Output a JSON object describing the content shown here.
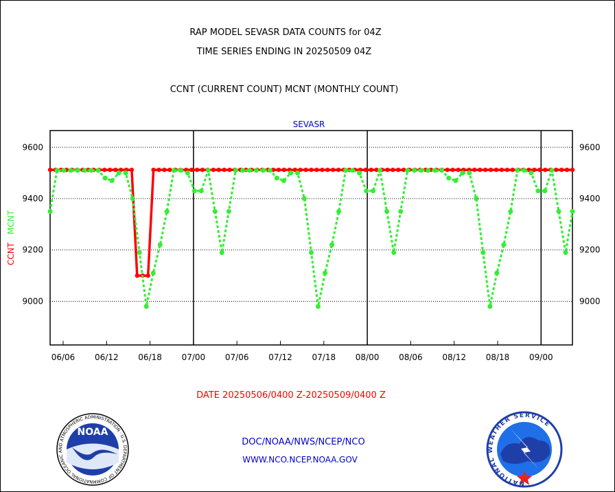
{
  "title_line1": "RAP MODEL SEVASR DATA COUNTS for 04Z",
  "title_line2": "TIME SERIES ENDING IN 20250509 04Z",
  "subtitle": "CCNT (CURRENT COUNT) MCNT (MONTHLY COUNT)",
  "date_range": "DATE 20250506/0400 Z-20250509/0400 Z",
  "footer_line1": "DOC/NOAA/NWS/NCEP/NCO",
  "footer_line2": "WWW.NCO.NCEP.NOAA.GOV",
  "logos": {
    "noaa_text": "NOAA",
    "noaa_ring_text": "NATIONAL OCEANIC AND ATMOSPHERIC ADMINISTRATION · U.S. DEPARTMENT OF COMMERCE ·",
    "nws_ring_text": "NATIONAL WEATHER SERVICE"
  },
  "colors": {
    "ccnt": "#ff0000",
    "mcnt": "#33ee33",
    "plot_title": "#0000cc",
    "date_text": "#ff0000",
    "footer": "#0000cc"
  },
  "chart_data": {
    "type": "line",
    "plot_title": "SEVASR",
    "ylabel_parts": [
      {
        "text": "CCNT",
        "color": "#ff0000"
      },
      {
        "text": "MCNT",
        "color": "#33ee33"
      }
    ],
    "x_tick_labels": [
      "06/06",
      "06/12",
      "06/18",
      "07/00",
      "07/06",
      "07/12",
      "07/18",
      "08/00",
      "08/06",
      "08/12",
      "08/18",
      "09/00"
    ],
    "y_ticks": [
      9000,
      9200,
      9400,
      9600
    ],
    "ylim": [
      8830,
      9665
    ],
    "grid": true,
    "series": [
      {
        "name": "CCNT",
        "color": "#ff0000",
        "values": [
          9512,
          9512,
          9512,
          9512,
          9512,
          9512,
          9512,
          9512,
          9512,
          9512,
          9512,
          9512,
          9512,
          9512,
          9512,
          9512,
          9100,
          9100,
          9100,
          9512,
          9512,
          9512,
          9512,
          9512,
          9512,
          9512,
          9512,
          9512,
          9512,
          9512,
          9512,
          9512,
          9512,
          9512,
          9512,
          9512,
          9512,
          9512,
          9512,
          9512,
          9512,
          9512,
          9512,
          9512,
          9512,
          9512,
          9512,
          9512,
          9512,
          9512,
          9512,
          9512,
          9512,
          9512,
          9512,
          9512,
          9512,
          9512,
          9512,
          9512,
          9512,
          9512,
          9512,
          9512,
          9512,
          9512,
          9512,
          9512,
          9512,
          9512,
          9512,
          9512,
          9512,
          9512,
          9512,
          9512,
          9512,
          9512,
          9512,
          9512,
          9512,
          9512,
          9512,
          9512,
          9512,
          9512,
          9512,
          9512,
          9512,
          9512,
          9512,
          9512,
          9512,
          9512,
          9512,
          9512,
          9512
        ]
      },
      {
        "name": "MCNT",
        "color": "#33ee33",
        "values": [
          9350,
          9510,
          9510,
          9510,
          9510,
          9510,
          9510,
          9510,
          9480,
          9470,
          9500,
          9500,
          9400,
          9190,
          8980,
          9110,
          9220,
          9350,
          9510,
          9510,
          9500,
          9430,
          9430,
          9510,
          9350,
          9190,
          9350,
          9510,
          9510,
          9510,
          9510,
          9510,
          9510,
          9480,
          9470,
          9500,
          9500,
          9400,
          9190,
          8980,
          9110,
          9220,
          9350,
          9510,
          9510,
          9500,
          9430,
          9430,
          9510,
          9350,
          9190,
          9350,
          9510,
          9510,
          9510,
          9510,
          9510,
          9510,
          9480,
          9470,
          9500,
          9500,
          9400,
          9190,
          8980,
          9110,
          9220,
          9350,
          9510,
          9510,
          9500,
          9430,
          9430,
          9510,
          9350,
          9190,
          9350
        ]
      }
    ]
  }
}
